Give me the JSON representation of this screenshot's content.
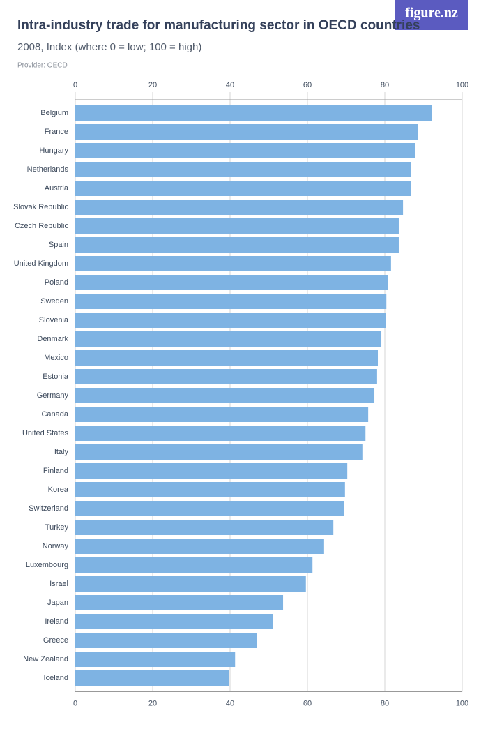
{
  "logo": "figure.nz",
  "chart_data": {
    "type": "hbar",
    "title": "Intra-industry trade for manufacturing sector in OECD countries",
    "subtitle": "2008, Index (where 0 = low; 100 = high)",
    "provider": "Provider: OECD",
    "color": "#7eb3e3",
    "grid": true,
    "xlim": [
      0,
      100
    ],
    "xticks": [
      0,
      20,
      40,
      60,
      80,
      100
    ],
    "categories": [
      "Belgium",
      "France",
      "Hungary",
      "Netherlands",
      "Austria",
      "Slovak Republic",
      "Czech Republic",
      "Spain",
      "United Kingdom",
      "Poland",
      "Sweden",
      "Slovenia",
      "Denmark",
      "Mexico",
      "Estonia",
      "Germany",
      "Canada",
      "United States",
      "Italy",
      "Finland",
      "Korea",
      "Switzerland",
      "Turkey",
      "Norway",
      "Luxembourg",
      "Israel",
      "Japan",
      "Ireland",
      "Greece",
      "New Zealand",
      "Iceland"
    ],
    "values": [
      92.1,
      88.5,
      87.9,
      86.8,
      86.7,
      84.7,
      83.6,
      83.6,
      81.6,
      80.9,
      80.4,
      80.2,
      79.1,
      78.2,
      78.0,
      77.3,
      75.7,
      75.0,
      74.2,
      70.3,
      69.7,
      69.4,
      66.7,
      64.3,
      61.3,
      59.6,
      53.7,
      51.0,
      47.0,
      41.3,
      39.8
    ]
  }
}
